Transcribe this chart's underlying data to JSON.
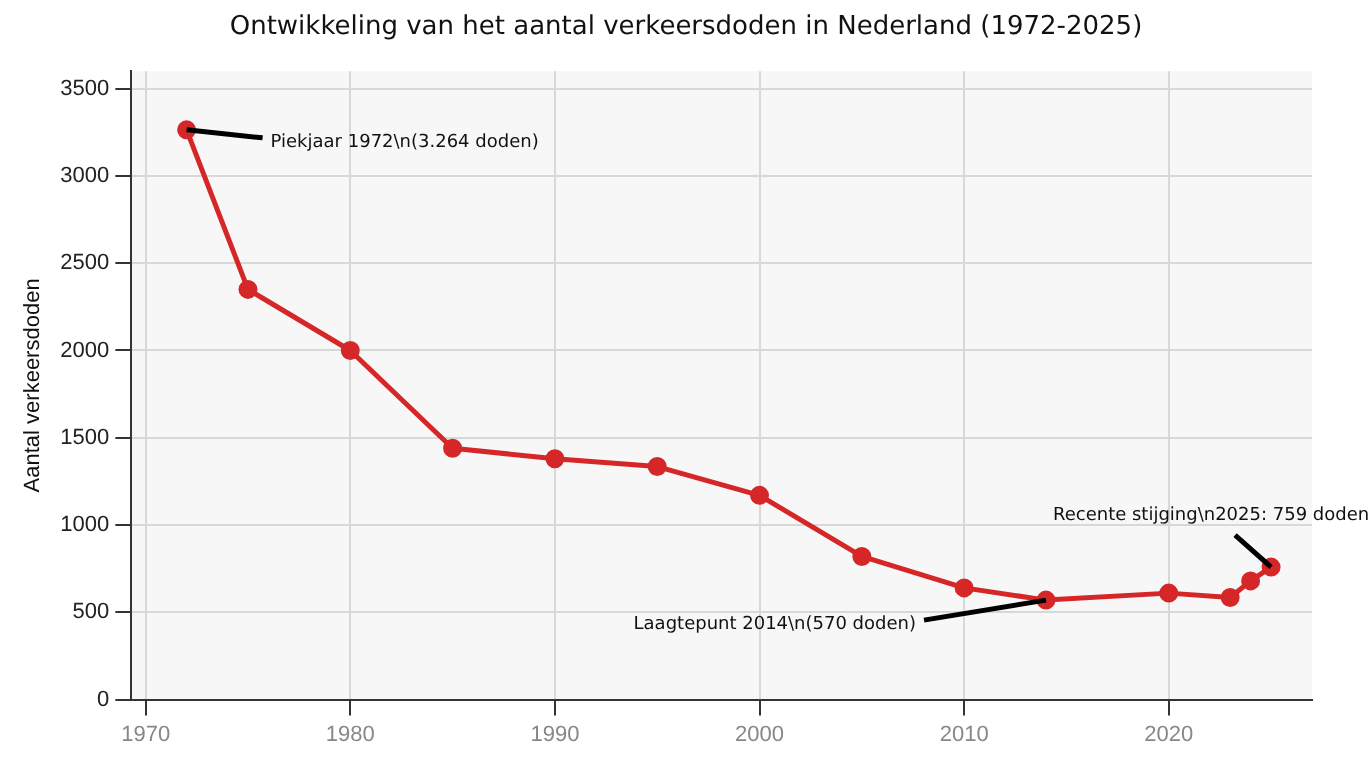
{
  "chart_data": {
    "type": "line",
    "title": "Ontwikkeling van het aantal verkeersdoden in Nederland (1972-2025)",
    "ylabel": "Aantal verkeersdoden",
    "x": [
      1972,
      1975,
      1980,
      1985,
      1990,
      1995,
      2000,
      2005,
      2010,
      2014,
      2020,
      2023,
      2024,
      2025
    ],
    "series": [
      {
        "color": "#d62728",
        "values": [
          3264,
          2350,
          2000,
          1440,
          1380,
          1335,
          1170,
          820,
          640,
          570,
          610,
          585,
          680,
          759
        ]
      }
    ],
    "xlim": [
      1969.3,
      2027
    ],
    "xticks": [
      1970,
      1980,
      1990,
      2000,
      2010,
      2020
    ],
    "ylim": [
      0,
      3600
    ],
    "yticks": [
      0,
      500,
      1000,
      1500,
      2000,
      2500,
      3000,
      3500
    ],
    "grid": true,
    "marker": "circle",
    "line_style": "solid",
    "legend": false,
    "annotations": [
      {
        "text": "Piekjaar 1972\\n(3.264 doden)",
        "x": 1972,
        "y": 3264
      },
      {
        "text": "Laagtepunt 2014\\n(570 doden)",
        "x": 2014,
        "y": 570
      },
      {
        "text": "Recente stijging\\n2025: 759 doden",
        "x": 2025,
        "y": 759
      }
    ]
  }
}
